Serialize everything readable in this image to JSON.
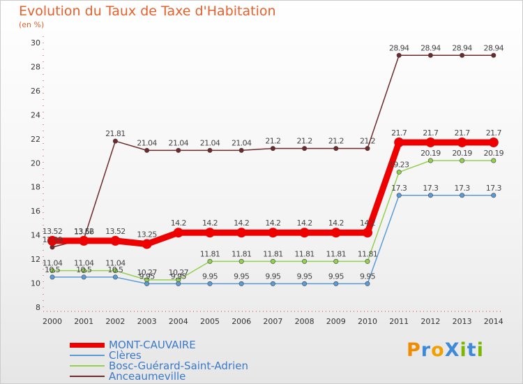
{
  "title": "Evolution du Taux de Taxe d'Habitation",
  "subtitle": "(en %)",
  "logo": {
    "text": "ProXiti",
    "letters": [
      "P",
      "r",
      "o",
      "X",
      "i",
      "t",
      "i"
    ],
    "colors": [
      "#f08c00",
      "#3d8ad8",
      "#f0a000",
      "#3d8ad8",
      "#7ab800",
      "#3d8ad8",
      "#7ab800"
    ]
  },
  "chart_data": {
    "type": "line",
    "title": "Evolution du Taux de Taxe d'Habitation",
    "ylabel": "(en %)",
    "xlabel": "",
    "ylim": [
      8,
      30
    ],
    "yticks": [
      8,
      10,
      12,
      14,
      16,
      18,
      20,
      22,
      24,
      26,
      28,
      30
    ],
    "categories": [
      "2000",
      "2001",
      "2002",
      "2003",
      "2004",
      "2005",
      "2006",
      "2007",
      "2008",
      "2009",
      "2010",
      "2011",
      "2012",
      "2013",
      "2014"
    ],
    "series": [
      {
        "name": "MONT-CAUVAIRE",
        "color": "#ee0000",
        "values": [
          13.52,
          13.52,
          13.52,
          13.25,
          14.2,
          14.2,
          14.2,
          14.2,
          14.2,
          14.2,
          14.2,
          21.7,
          21.7,
          21.7,
          21.7
        ],
        "labels": [
          "13.52",
          "13.52",
          "13.52",
          "13.25",
          "14.2",
          "14.2",
          "14.2",
          "14.2",
          "14.2",
          "14.2",
          "14.2",
          "21.7",
          "21.7",
          "21.7",
          "21.7"
        ]
      },
      {
        "name": "Clères",
        "color": "#5b9bd5",
        "values": [
          10.5,
          10.5,
          10.5,
          9.95,
          9.95,
          9.95,
          9.95,
          9.95,
          9.95,
          9.95,
          9.95,
          17.3,
          17.3,
          17.3,
          17.3
        ],
        "labels": [
          "10.5",
          "10.5",
          "10.5",
          "9.95",
          "9.95",
          "9.95",
          "9.95",
          "9.95",
          "9.95",
          "9.95",
          "9.95",
          "17.3",
          "17.3",
          "17.3",
          "17.3"
        ]
      },
      {
        "name": "Bosc-Guérard-Saint-Adrien",
        "color": "#92d050",
        "values": [
          11.04,
          11.04,
          11.04,
          10.27,
          10.27,
          11.81,
          11.81,
          11.81,
          11.81,
          11.81,
          11.81,
          19.23,
          20.19,
          20.19,
          20.19
        ],
        "labels": [
          "11.04",
          "11.04",
          "11.04",
          "10.27",
          "10.27",
          "11.81",
          "11.81",
          "11.81",
          "11.81",
          "11.81",
          "11.81",
          "19.23",
          "20.19",
          "20.19",
          "20.19"
        ]
      },
      {
        "name": "Anceaumeville",
        "color": "#6e2a2a",
        "values": [
          12.99,
          13.66,
          21.81,
          21.04,
          21.04,
          21.04,
          21.04,
          21.2,
          21.2,
          21.2,
          21.2,
          28.94,
          28.94,
          28.94,
          28.94
        ],
        "labels": [
          "12.99",
          "13.66",
          "21.81",
          "21.04",
          "21.04",
          "21.04",
          "21.04",
          "21.2",
          "21.2",
          "21.2",
          "21.2",
          "28.94",
          "28.94",
          "28.94",
          "28.94"
        ]
      }
    ],
    "grid": false,
    "legend": "bottom-left"
  }
}
